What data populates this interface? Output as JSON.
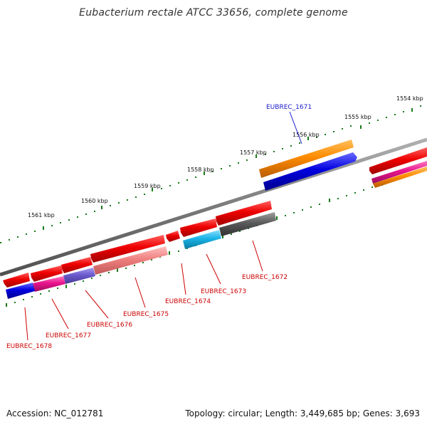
{
  "title": "Eubacterium rectale ATCC 33656, complete genome",
  "footer": {
    "accession": "Accession: NC_012781",
    "summary": "Topology: circular; Length: 3,449,685 bp; Genes: 3,693"
  },
  "colors": {
    "backbone": "#808080",
    "tick": "#1a7a1a",
    "label_forward": "#1a1acc",
    "label_reverse": "#cc0000",
    "gene_red": "#e60000",
    "gene_blue": "#0000dd",
    "gene_orange": "#ff8c00",
    "gene_magenta": "#e8138c",
    "gene_purple": "#6a5acd",
    "gene_salmon": "#f08080",
    "gene_cyan": "#19b3e6",
    "gene_gray": "#5a5a5a"
  },
  "scale_labels": {
    "l1554": "1554 kbp",
    "l1555": "1555 kbp",
    "l1556": "1556 kbp",
    "l1557": "1557 kbp",
    "l1558": "1558 kbp",
    "l1559": "1559 kbp",
    "l1560": "1560 kbp",
    "l1561": "1561 kbp"
  },
  "gene_labels": {
    "g1671": "EUBREC_1671",
    "g1672": "EUBREC_1672",
    "g1673": "EUBREC_1673",
    "g1674": "EUBREC_1674",
    "g1675": "EUBREC_1675",
    "g1676": "EUBREC_1676",
    "g1677": "EUBREC_1677",
    "g1678": "EUBREC_1678"
  }
}
